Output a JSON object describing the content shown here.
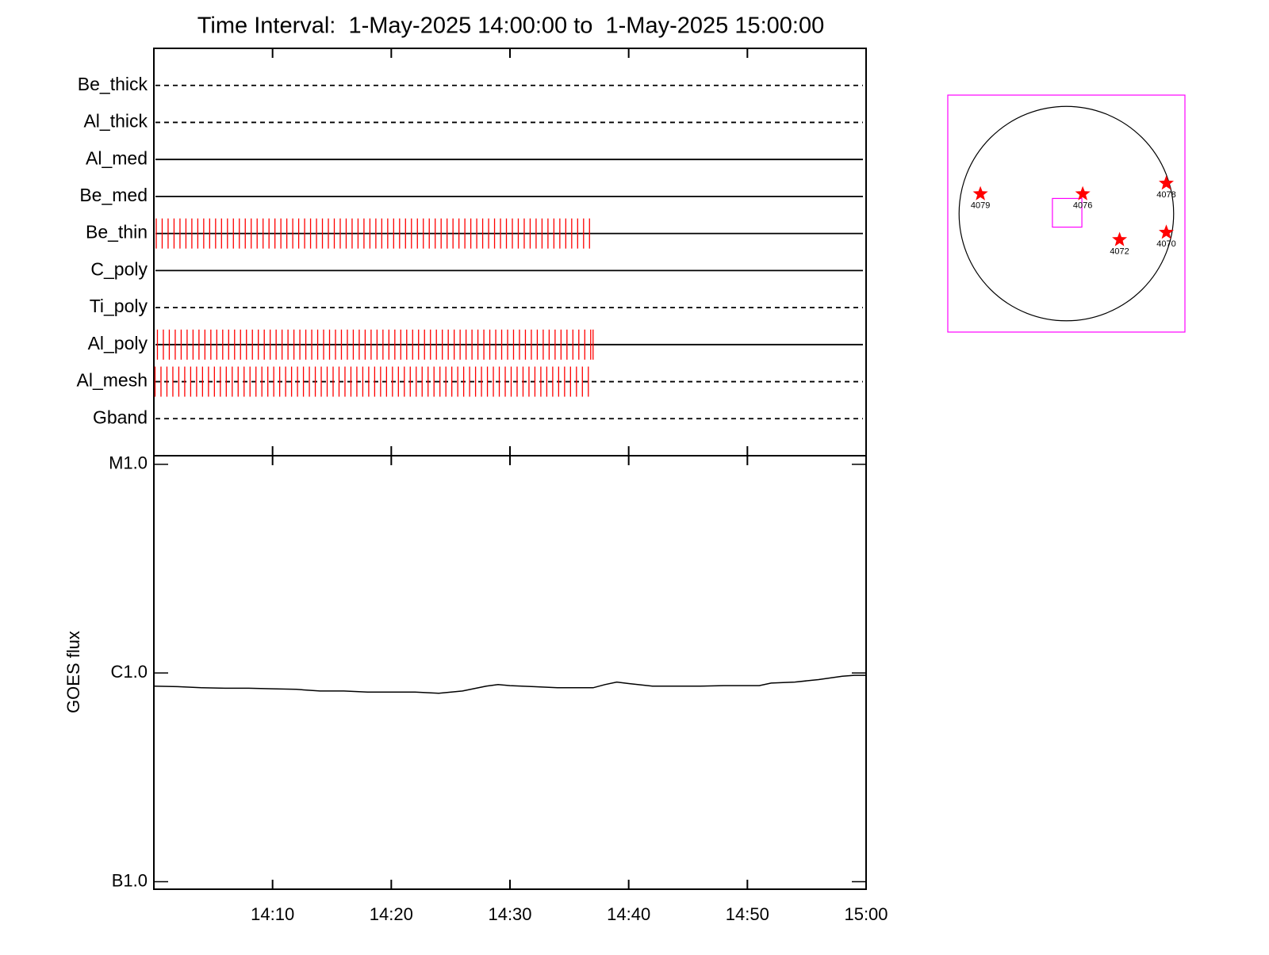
{
  "chart_data": [
    {
      "type": "timeline",
      "title": "Time Interval:  1-May-2025 14:00:00 to  1-May-2025 15:00:00",
      "categories": [
        "Be_thick",
        "Al_thick",
        "Al_med",
        "Be_med",
        "Be_thin",
        "C_poly",
        "Ti_poly",
        "Al_poly",
        "Al_mesh",
        "Gband"
      ],
      "line_styles": [
        "dashed",
        "dashed",
        "solid",
        "solid",
        "solid",
        "solid",
        "dashed",
        "solid",
        "dashed",
        "dashed"
      ],
      "color": "#ff0000",
      "xlim": [
        0,
        60
      ],
      "xticks": [
        10,
        20,
        30,
        40,
        50
      ],
      "times": [
        [],
        [],
        [],
        [],
        [
          0.2,
          0.7,
          1.2,
          1.7,
          2.2,
          2.7,
          3.2,
          3.7,
          4.2,
          4.7,
          5.2,
          5.7,
          6.2,
          6.7,
          7.2,
          7.7,
          8.2,
          8.7,
          9.2,
          9.7,
          10.2,
          10.7,
          11.2,
          11.7,
          12.2,
          12.7,
          13.2,
          13.7,
          14.2,
          14.7,
          15.2,
          15.7,
          16.2,
          16.7,
          17.2,
          17.7,
          18.2,
          18.7,
          19.2,
          19.7,
          20.2,
          20.7,
          21.2,
          21.7,
          22.2,
          22.7,
          23.2,
          23.7,
          24.2,
          24.7,
          25.2,
          25.7,
          26.2,
          26.7,
          27.2,
          27.7,
          28.2,
          28.7,
          29.2,
          29.7,
          30.2,
          30.7,
          31.2,
          31.7,
          32.2,
          32.7,
          33.2,
          33.7,
          34.2,
          34.7,
          35.2,
          35.7,
          36.2,
          36.7
        ],
        [],
        [],
        [
          0.3,
          0.8,
          1.3,
          1.8,
          2.3,
          2.8,
          3.3,
          3.8,
          4.3,
          4.8,
          5.3,
          5.8,
          6.3,
          6.8,
          7.3,
          7.8,
          8.3,
          8.8,
          9.3,
          9.8,
          10.3,
          10.8,
          11.3,
          11.8,
          12.3,
          12.8,
          13.3,
          13.8,
          14.3,
          14.8,
          15.3,
          15.8,
          16.3,
          16.8,
          17.3,
          17.8,
          18.3,
          18.8,
          19.3,
          19.8,
          20.3,
          20.8,
          21.3,
          21.8,
          22.3,
          22.8,
          23.3,
          23.8,
          24.3,
          24.8,
          25.3,
          25.8,
          26.3,
          26.8,
          27.3,
          27.8,
          28.3,
          28.8,
          29.3,
          29.8,
          30.3,
          30.8,
          31.3,
          31.8,
          32.3,
          32.8,
          33.3,
          33.8,
          34.3,
          34.8,
          35.3,
          35.8,
          36.3,
          36.8,
          37.0
        ],
        [
          0.1,
          0.6,
          1.1,
          1.6,
          2.1,
          2.6,
          3.1,
          3.6,
          4.1,
          4.6,
          5.1,
          5.6,
          6.1,
          6.6,
          7.1,
          7.6,
          8.1,
          8.6,
          9.1,
          9.6,
          10.1,
          10.6,
          11.1,
          11.6,
          12.1,
          12.6,
          13.1,
          13.6,
          14.1,
          14.6,
          15.1,
          15.6,
          16.1,
          16.6,
          17.1,
          17.6,
          18.1,
          18.6,
          19.1,
          19.6,
          20.1,
          20.6,
          21.1,
          21.6,
          22.1,
          22.6,
          23.1,
          23.6,
          24.1,
          24.6,
          25.1,
          25.6,
          26.1,
          26.6,
          27.1,
          27.6,
          28.1,
          28.6,
          29.1,
          29.6,
          30.1,
          30.6,
          31.1,
          31.6,
          32.1,
          32.6,
          33.1,
          33.6,
          34.1,
          34.6,
          35.1,
          35.6,
          36.1,
          36.6
        ],
        []
      ]
    },
    {
      "type": "line",
      "ylabel": "GOES flux",
      "color": "#000000",
      "log_scale": true,
      "xlim": [
        0,
        60
      ],
      "xticks": [
        {
          "value": 10,
          "label": "14:10"
        },
        {
          "value": 20,
          "label": "14:20"
        },
        {
          "value": 30,
          "label": "14:30"
        },
        {
          "value": 40,
          "label": "14:40"
        },
        {
          "value": 50,
          "label": "14:50"
        },
        {
          "value": 60,
          "label": "15:00"
        }
      ],
      "ylim": [
        9.2e-08,
        1.1e-05
      ],
      "yticks": [
        {
          "value": 1e-07,
          "label": "B1.0"
        },
        {
          "value": 1e-06,
          "label": "C1.0"
        },
        {
          "value": 1e-05,
          "label": "M1.0"
        }
      ],
      "x": [
        0,
        2,
        4,
        6,
        8,
        10,
        12,
        14,
        16,
        18,
        20,
        22,
        24,
        26,
        28,
        29,
        30,
        32,
        34,
        36,
        37,
        38,
        39,
        40,
        42,
        44,
        46,
        48,
        50,
        51,
        52,
        54,
        56,
        58,
        59,
        60
      ],
      "values": [
        8.65e-07,
        8.6e-07,
        8.5e-07,
        8.45e-07,
        8.45e-07,
        8.4e-07,
        8.35e-07,
        8.2e-07,
        8.2e-07,
        8.1e-07,
        8.1e-07,
        8.1e-07,
        8e-07,
        8.2e-07,
        8.65e-07,
        8.8e-07,
        8.7e-07,
        8.6e-07,
        8.5e-07,
        8.5e-07,
        8.5e-07,
        8.8e-07,
        9.05e-07,
        8.9e-07,
        8.65e-07,
        8.65e-07,
        8.65e-07,
        8.7e-07,
        8.7e-07,
        8.7e-07,
        8.95e-07,
        9.05e-07,
        9.3e-07,
        9.65e-07,
        9.75e-07,
        9.75e-07
      ]
    },
    {
      "type": "scatter",
      "color": "#ff0000",
      "frame_color": "#ff00ff",
      "xlim": [
        -1050,
        1050
      ],
      "ylim": [
        -1050,
        1050
      ],
      "solar_radius": 950,
      "fov_center": [
        7,
        7
      ],
      "fov_size": [
        261,
        254
      ],
      "labels": [
        "4079",
        "4076",
        "4078",
        "4072",
        "4070"
      ],
      "x": [
        -761,
        145,
        885,
        471,
        885
      ],
      "values": [
        174,
        174,
        268,
        -232,
        -167
      ]
    }
  ]
}
